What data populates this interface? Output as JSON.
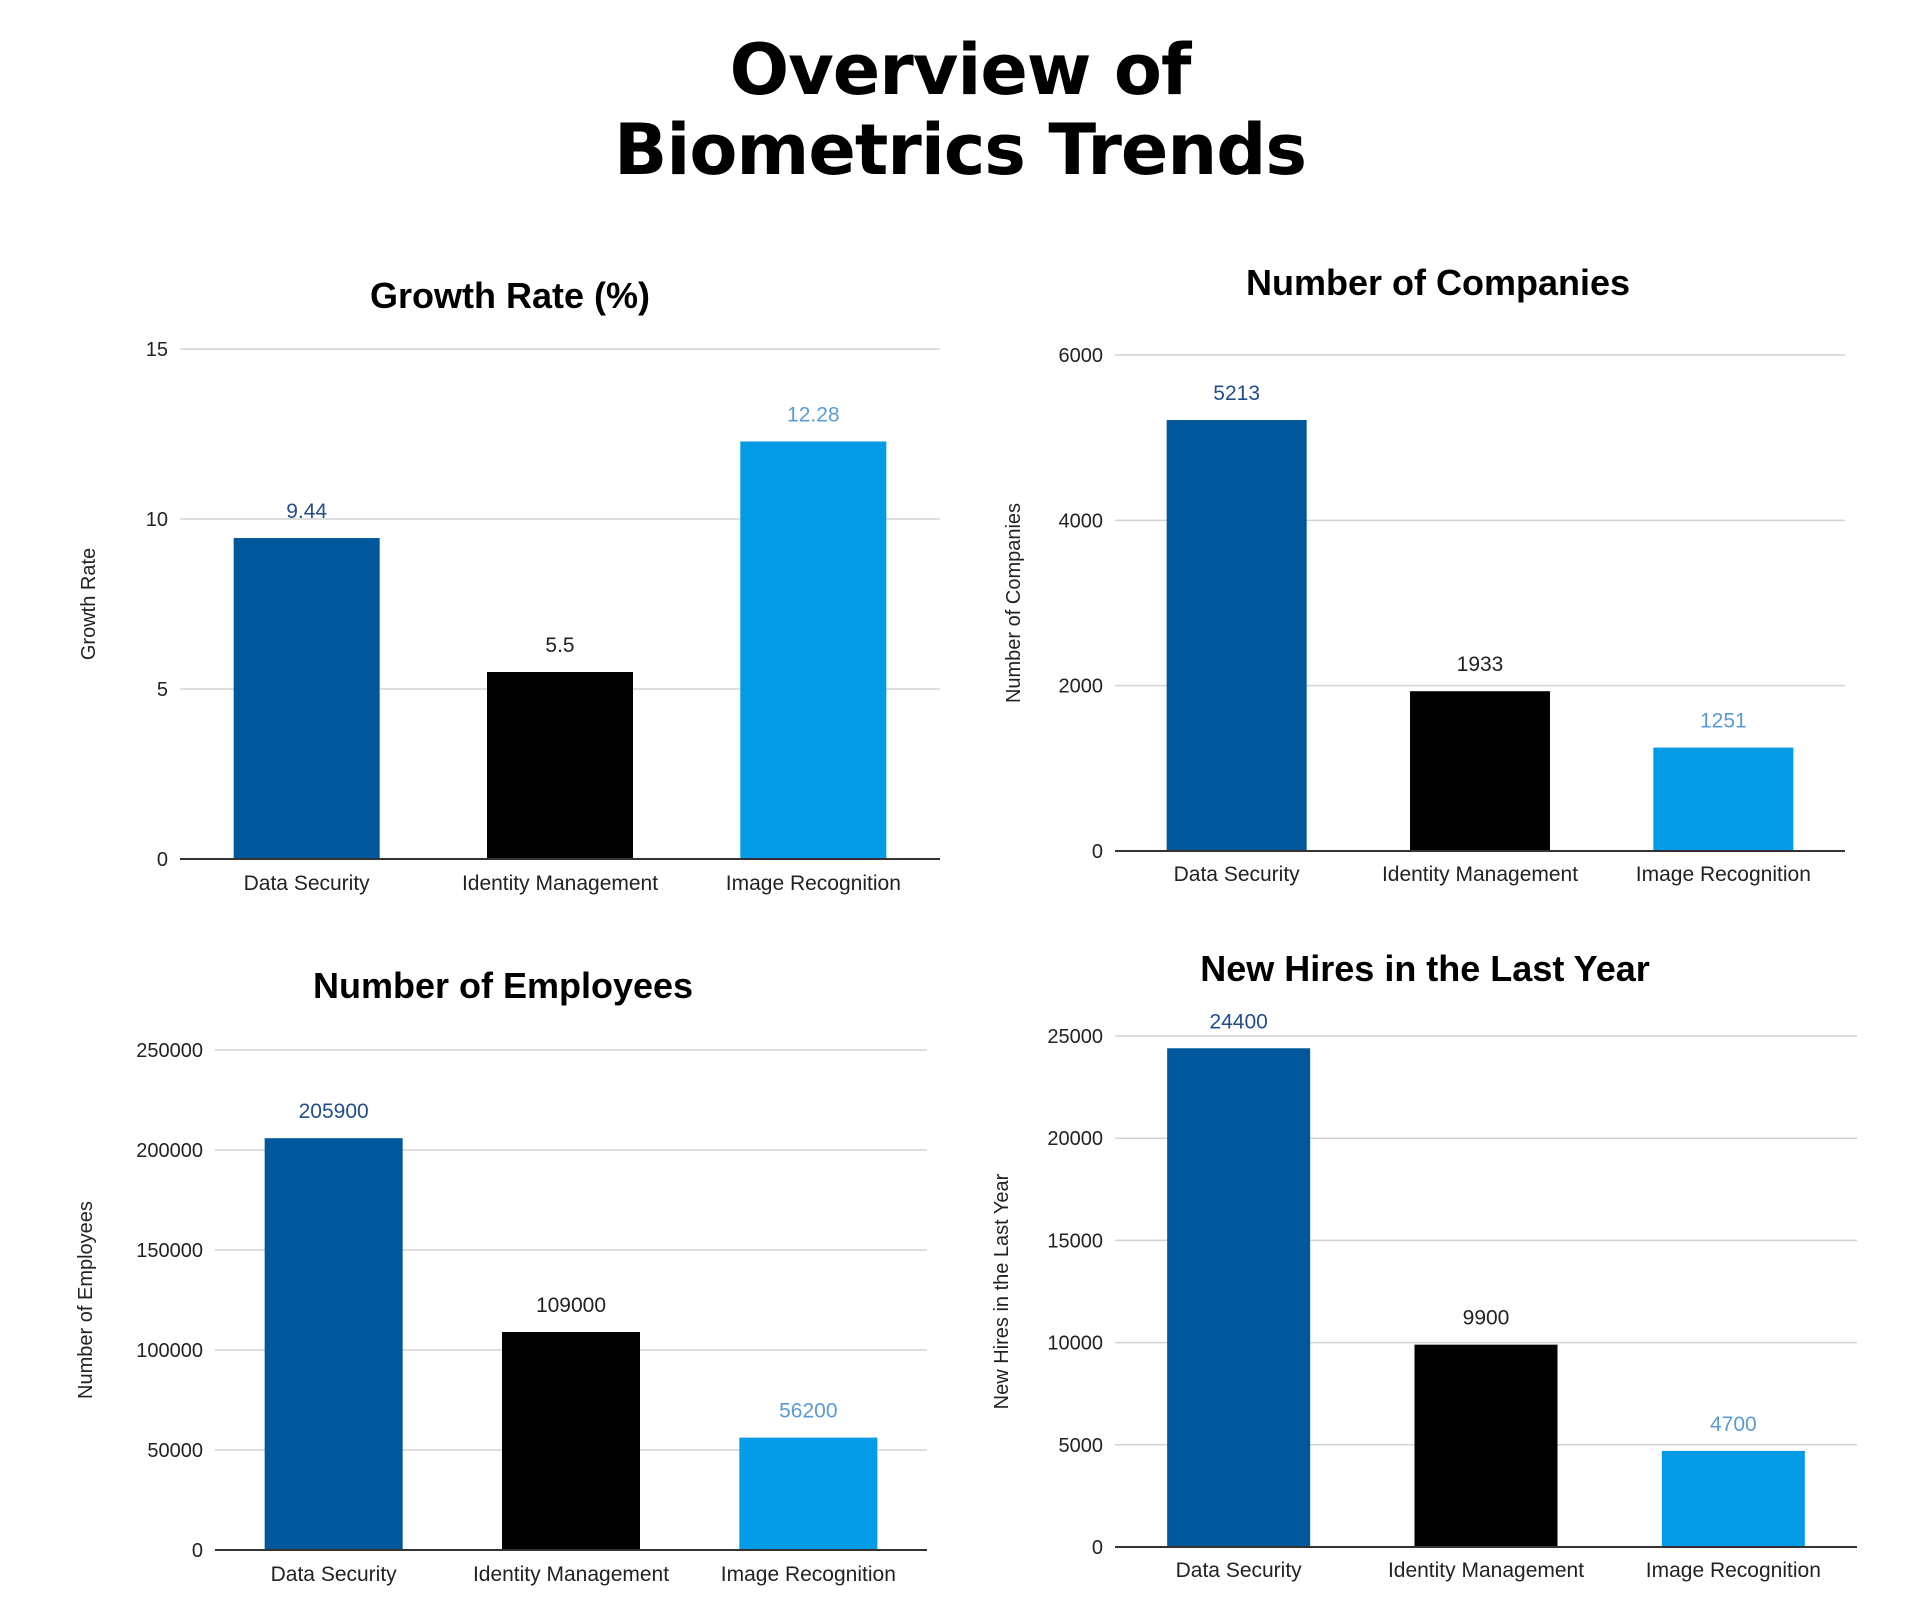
{
  "title_lines": [
    "Overview of",
    "Biometrics Trends"
  ],
  "colors": {
    "data_security": "#01579b",
    "identity_management": "#000000",
    "image_recognition": "#039be5"
  },
  "label_colors": [
    "#234e8c",
    "#222222",
    "#5b9bd5"
  ],
  "chart_data": [
    {
      "type": "bar",
      "title": "Growth Rate (%)",
      "ylabel": "Growth Rate",
      "categories": [
        "Data Security",
        "Identity Management",
        "Image Recognition"
      ],
      "values": [
        9.44,
        5.5,
        12.28
      ],
      "value_labels": [
        "9.44",
        "5.5",
        "12.28"
      ],
      "ylim": [
        0,
        15
      ],
      "yticks": [
        0,
        5,
        10,
        15
      ],
      "grid": true
    },
    {
      "type": "bar",
      "title": "Number of Companies",
      "ylabel": "Number of Companies",
      "categories": [
        "Data Security",
        "Identity Management",
        "Image Recognition"
      ],
      "values": [
        5213,
        1933,
        1251
      ],
      "value_labels": [
        "5213",
        "1933",
        "1251"
      ],
      "ylim": [
        0,
        6000
      ],
      "yticks": [
        0,
        2000,
        4000,
        6000
      ],
      "grid": true
    },
    {
      "type": "bar",
      "title": "Number of Employees",
      "ylabel": "Number of Employees",
      "categories": [
        "Data Security",
        "Identity Management",
        "Image Recognition"
      ],
      "values": [
        205900,
        109000,
        56200
      ],
      "value_labels": [
        "205900",
        "109000",
        "56200"
      ],
      "ylim": [
        0,
        250000
      ],
      "yticks": [
        0,
        50000,
        100000,
        150000,
        200000,
        250000
      ],
      "grid": true
    },
    {
      "type": "bar",
      "title": "New Hires in the Last Year",
      "ylabel": "New Hires in the Last Year",
      "categories": [
        "Data Security",
        "Identity Management",
        "Image Recognition"
      ],
      "values": [
        24400,
        9900,
        4700
      ],
      "value_labels": [
        "24400",
        "9900",
        "4700"
      ],
      "ylim": [
        0,
        25000
      ],
      "yticks": [
        0,
        5000,
        10000,
        15000,
        20000,
        25000
      ],
      "grid": true
    }
  ]
}
